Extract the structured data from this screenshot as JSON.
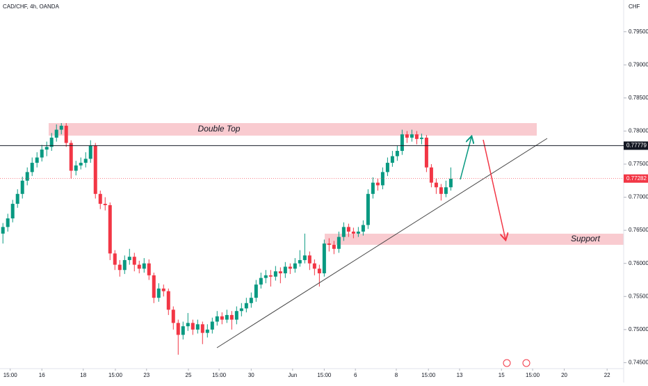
{
  "chart_data": {
    "type": "candlestick",
    "title": "CAD/CHF, 4h, OANDA",
    "y_axis_label": "CHF",
    "up_color": "#089981",
    "down_color": "#f23645",
    "xlim": [
      -0.6,
      127.5
    ],
    "ylim": [
      0.7441,
      0.7998
    ],
    "xticks": [
      {
        "value": 1.5,
        "label": "15:00"
      },
      {
        "value": 8,
        "label": "16"
      },
      {
        "value": 16.5,
        "label": "18"
      },
      {
        "value": 23.1,
        "label": "15:00"
      },
      {
        "value": 29.5,
        "label": "23"
      },
      {
        "value": 38.1,
        "label": "25"
      },
      {
        "value": 44.4,
        "label": "15:00"
      },
      {
        "value": 51,
        "label": "30"
      },
      {
        "value": 59.5,
        "label": "Jun"
      },
      {
        "value": 66,
        "label": "15:00"
      },
      {
        "value": 72.4,
        "label": "6"
      },
      {
        "value": 80.8,
        "label": "8"
      },
      {
        "value": 87.4,
        "label": "15:00"
      },
      {
        "value": 93.8,
        "label": "13"
      },
      {
        "value": 102.4,
        "label": "15"
      },
      {
        "value": 108.8,
        "label": "15:00"
      },
      {
        "value": 115.3,
        "label": "20"
      },
      {
        "value": 124.1,
        "label": "22"
      }
    ],
    "yticks": [
      {
        "value": 0.745,
        "label": "0.74500"
      },
      {
        "value": 0.75,
        "label": "0.75000"
      },
      {
        "value": 0.755,
        "label": "0.75500"
      },
      {
        "value": 0.76,
        "label": "0.76000"
      },
      {
        "value": 0.765,
        "label": "0.76500"
      },
      {
        "value": 0.77,
        "label": "0.77000"
      },
      {
        "value": 0.775,
        "label": "0.77500"
      },
      {
        "value": 0.78,
        "label": "0.78000"
      },
      {
        "value": 0.785,
        "label": "0.78500"
      },
      {
        "value": 0.79,
        "label": "0.79000"
      },
      {
        "value": 0.795,
        "label": "0.79500"
      }
    ],
    "price_lines": [
      {
        "value": 0.77779,
        "color": "#131722"
      },
      {
        "value": 0.77282,
        "color": "#f23645"
      }
    ],
    "annotations": [
      "Double Top",
      "Support"
    ],
    "candles": [
      [
        0.7645,
        0.7661,
        0.763,
        0.7655
      ],
      [
        0.7655,
        0.7675,
        0.7648,
        0.7668
      ],
      [
        0.7668,
        0.7696,
        0.7662,
        0.769
      ],
      [
        0.769,
        0.7712,
        0.7684,
        0.7705
      ],
      [
        0.7705,
        0.7731,
        0.7698,
        0.7725
      ],
      [
        0.7725,
        0.7745,
        0.7718,
        0.7738
      ],
      [
        0.7738,
        0.776,
        0.7732,
        0.7752
      ],
      [
        0.7752,
        0.7768,
        0.7745,
        0.776
      ],
      [
        0.776,
        0.7779,
        0.7754,
        0.7772
      ],
      [
        0.7772,
        0.7784,
        0.7762,
        0.7776
      ],
      [
        0.7776,
        0.7797,
        0.777,
        0.779
      ],
      [
        0.779,
        0.781,
        0.7784,
        0.7802
      ],
      [
        0.7802,
        0.7812,
        0.7795,
        0.7808
      ],
      [
        0.7808,
        0.7812,
        0.7776,
        0.7782
      ],
      [
        0.7782,
        0.7786,
        0.7728,
        0.774
      ],
      [
        0.774,
        0.7755,
        0.7733,
        0.7748
      ],
      [
        0.7748,
        0.776,
        0.7742,
        0.7752
      ],
      [
        0.7752,
        0.7768,
        0.7745,
        0.7758
      ],
      [
        0.7758,
        0.7786,
        0.7752,
        0.7778
      ],
      [
        0.7778,
        0.7782,
        0.7698,
        0.7705
      ],
      [
        0.7705,
        0.771,
        0.7682,
        0.769
      ],
      [
        0.769,
        0.77,
        0.768,
        0.7688
      ],
      [
        0.7688,
        0.7692,
        0.7605,
        0.7615
      ],
      [
        0.7615,
        0.762,
        0.759,
        0.7598
      ],
      [
        0.7598,
        0.7605,
        0.758,
        0.759
      ],
      [
        0.759,
        0.7612,
        0.7584,
        0.7605
      ],
      [
        0.7605,
        0.7622,
        0.7598,
        0.761
      ],
      [
        0.761,
        0.7616,
        0.7588,
        0.7598
      ],
      [
        0.7598,
        0.7604,
        0.7585,
        0.7592
      ],
      [
        0.7592,
        0.7608,
        0.7586,
        0.76
      ],
      [
        0.76,
        0.7606,
        0.7575,
        0.7582
      ],
      [
        0.7582,
        0.7586,
        0.754,
        0.7548
      ],
      [
        0.7548,
        0.757,
        0.7542,
        0.7562
      ],
      [
        0.7562,
        0.7568,
        0.755,
        0.7558
      ],
      [
        0.7558,
        0.7562,
        0.7522,
        0.753
      ],
      [
        0.753,
        0.7535,
        0.75,
        0.751
      ],
      [
        0.751,
        0.7515,
        0.7462,
        0.7492
      ],
      [
        0.7492,
        0.7512,
        0.7485,
        0.7505
      ],
      [
        0.7505,
        0.7525,
        0.7498,
        0.751
      ],
      [
        0.751,
        0.7515,
        0.7492,
        0.75
      ],
      [
        0.75,
        0.7515,
        0.7494,
        0.7508
      ],
      [
        0.7508,
        0.7512,
        0.7478,
        0.7495
      ],
      [
        0.7495,
        0.7508,
        0.7488,
        0.75
      ],
      [
        0.75,
        0.7518,
        0.7494,
        0.7512
      ],
      [
        0.7512,
        0.7528,
        0.7506,
        0.752
      ],
      [
        0.752,
        0.7526,
        0.7508,
        0.7515
      ],
      [
        0.7515,
        0.753,
        0.751,
        0.7522
      ],
      [
        0.7522,
        0.7528,
        0.75,
        0.7515
      ],
      [
        0.7515,
        0.7535,
        0.7508,
        0.7528
      ],
      [
        0.7528,
        0.754,
        0.752,
        0.7532
      ],
      [
        0.7532,
        0.7548,
        0.7526,
        0.754
      ],
      [
        0.754,
        0.7556,
        0.7533,
        0.7548
      ],
      [
        0.7548,
        0.7575,
        0.7542,
        0.7568
      ],
      [
        0.7568,
        0.7586,
        0.7562,
        0.7578
      ],
      [
        0.7578,
        0.759,
        0.757,
        0.7582
      ],
      [
        0.7582,
        0.759,
        0.7565,
        0.758
      ],
      [
        0.758,
        0.7596,
        0.7574,
        0.7588
      ],
      [
        0.7588,
        0.7594,
        0.757,
        0.7585
      ],
      [
        0.7585,
        0.7602,
        0.7578,
        0.7595
      ],
      [
        0.7595,
        0.76,
        0.7584,
        0.7592
      ],
      [
        0.7592,
        0.7608,
        0.7586,
        0.76
      ],
      [
        0.76,
        0.762,
        0.7595,
        0.7605
      ],
      [
        0.7605,
        0.7645,
        0.76,
        0.7612
      ],
      [
        0.7612,
        0.7618,
        0.759,
        0.76
      ],
      [
        0.76,
        0.7606,
        0.7582,
        0.7592
      ],
      [
        0.7592,
        0.7598,
        0.7565,
        0.7585
      ],
      [
        0.7585,
        0.7636,
        0.758,
        0.763
      ],
      [
        0.763,
        0.7638,
        0.7618,
        0.7628
      ],
      [
        0.7628,
        0.7634,
        0.7614,
        0.7622
      ],
      [
        0.7622,
        0.7648,
        0.7616,
        0.764
      ],
      [
        0.764,
        0.7662,
        0.7634,
        0.7655
      ],
      [
        0.7655,
        0.766,
        0.764,
        0.7648
      ],
      [
        0.7648,
        0.7654,
        0.7638,
        0.7645
      ],
      [
        0.7645,
        0.7655,
        0.764,
        0.7648
      ],
      [
        0.7648,
        0.7665,
        0.7642,
        0.7658
      ],
      [
        0.7658,
        0.7712,
        0.7652,
        0.7705
      ],
      [
        0.7705,
        0.773,
        0.7698,
        0.7722
      ],
      [
        0.7722,
        0.7728,
        0.771,
        0.7718
      ],
      [
        0.7718,
        0.7745,
        0.7712,
        0.7738
      ],
      [
        0.7738,
        0.776,
        0.7732,
        0.7752
      ],
      [
        0.7752,
        0.777,
        0.7746,
        0.7762
      ],
      [
        0.7762,
        0.7778,
        0.7755,
        0.777
      ],
      [
        0.777,
        0.7802,
        0.7764,
        0.7795
      ],
      [
        0.7795,
        0.78,
        0.7782,
        0.779
      ],
      [
        0.779,
        0.7802,
        0.7784,
        0.7795
      ],
      [
        0.7795,
        0.78,
        0.778,
        0.7788
      ],
      [
        0.7788,
        0.7796,
        0.778,
        0.779
      ],
      [
        0.779,
        0.7794,
        0.7738,
        0.7745
      ],
      [
        0.7745,
        0.775,
        0.7715,
        0.7722
      ],
      [
        0.7722,
        0.7728,
        0.7705,
        0.7715
      ],
      [
        0.7715,
        0.772,
        0.7695,
        0.7705
      ],
      [
        0.7705,
        0.7725,
        0.77,
        0.7715
      ],
      [
        0.7715,
        0.7745,
        0.771,
        0.7728
      ]
    ]
  }
}
